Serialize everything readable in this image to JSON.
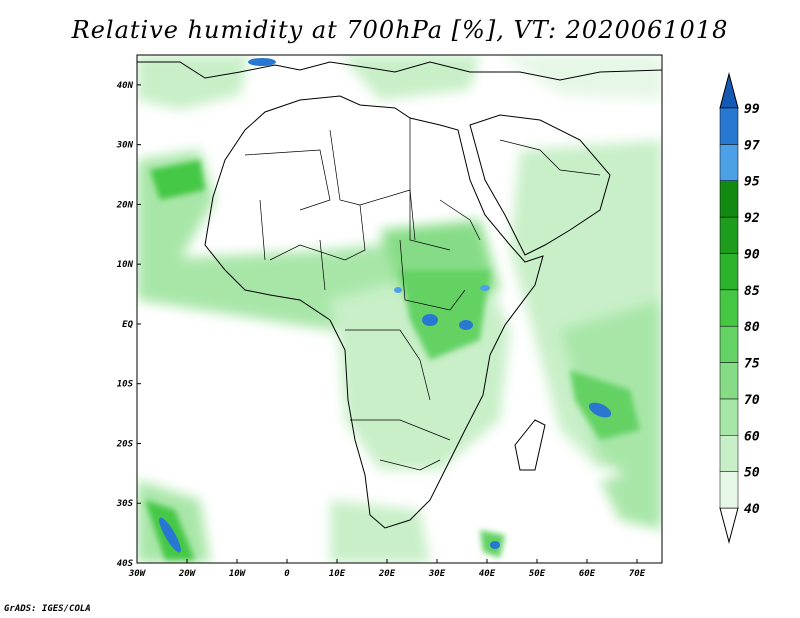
{
  "title": "Relative humidity at 700hPa [%], VT: 2020061018",
  "credit": "GrADS: IGES/COLA",
  "map": {
    "lon_range": [
      -30,
      75
    ],
    "lat_range": [
      -40,
      45
    ],
    "lon_ticks": [
      {
        "value": -30,
        "label": "30W"
      },
      {
        "value": -20,
        "label": "20W"
      },
      {
        "value": -10,
        "label": "10W"
      },
      {
        "value": 0,
        "label": "0"
      },
      {
        "value": 10,
        "label": "10E"
      },
      {
        "value": 20,
        "label": "20E"
      },
      {
        "value": 30,
        "label": "30E"
      },
      {
        "value": 40,
        "label": "40E"
      },
      {
        "value": 50,
        "label": "50E"
      },
      {
        "value": 60,
        "label": "60E"
      },
      {
        "value": 70,
        "label": "70E"
      }
    ],
    "lat_ticks": [
      {
        "value": 40,
        "label": "40N"
      },
      {
        "value": 30,
        "label": "30N"
      },
      {
        "value": 20,
        "label": "20N"
      },
      {
        "value": 10,
        "label": "10N"
      },
      {
        "value": 0,
        "label": "EQ"
      },
      {
        "value": -10,
        "label": "10S"
      },
      {
        "value": -20,
        "label": "20S"
      },
      {
        "value": -30,
        "label": "30S"
      },
      {
        "value": -40,
        "label": "40S"
      }
    ]
  },
  "colorbar": {
    "levels": [
      "40",
      "50",
      "60",
      "70",
      "75",
      "80",
      "85",
      "90",
      "92",
      "95",
      "97",
      "99"
    ],
    "colors": [
      "#ffffff",
      "#e6f7e6",
      "#c8efc8",
      "#a8e6a8",
      "#86dc86",
      "#64d264",
      "#44c844",
      "#2cb42c",
      "#1e9c1e",
      "#128a12",
      "#4ca0e6",
      "#2878d2",
      "#145ab4"
    ]
  },
  "colors": {
    "moist": "#86dc86",
    "very_moist": "#44c844",
    "saturated": "#2878d2"
  }
}
